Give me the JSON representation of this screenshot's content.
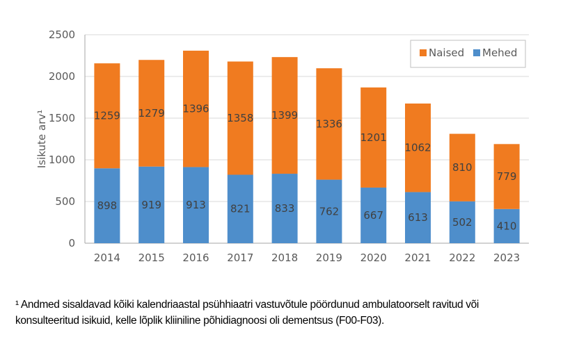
{
  "chart_data": {
    "type": "bar",
    "stacked": true,
    "categories": [
      "2014",
      "2015",
      "2016",
      "2017",
      "2018",
      "2019",
      "2020",
      "2021",
      "2022",
      "2023"
    ],
    "series": [
      {
        "name": "Mehed",
        "color": "#4E8ECB",
        "values": [
          898,
          919,
          913,
          821,
          833,
          762,
          667,
          613,
          502,
          410
        ]
      },
      {
        "name": "Naised",
        "color": "#F07B20",
        "values": [
          1259,
          1279,
          1396,
          1358,
          1399,
          1336,
          1201,
          1062,
          810,
          779
        ]
      }
    ],
    "title": "",
    "xlabel": "",
    "ylabel": "Isikute arv¹",
    "ylim": [
      0,
      2500
    ],
    "yticks": [
      0,
      500,
      1000,
      1500,
      2000,
      2500
    ],
    "grid": true,
    "legend": "top-right",
    "legend_order": [
      "Naised",
      "Mehed"
    ]
  },
  "footnote": {
    "line1": "¹ Andmed sisaldavad kõiki kalendriaastal psühhiaatri vastuvõtule pöördunud ambulatoorselt ravitud või",
    "line2": "konsulteeritud isikuid, kelle lõplik kliiniline põhidiagnoosi oli dementsus (F00-F03)."
  }
}
